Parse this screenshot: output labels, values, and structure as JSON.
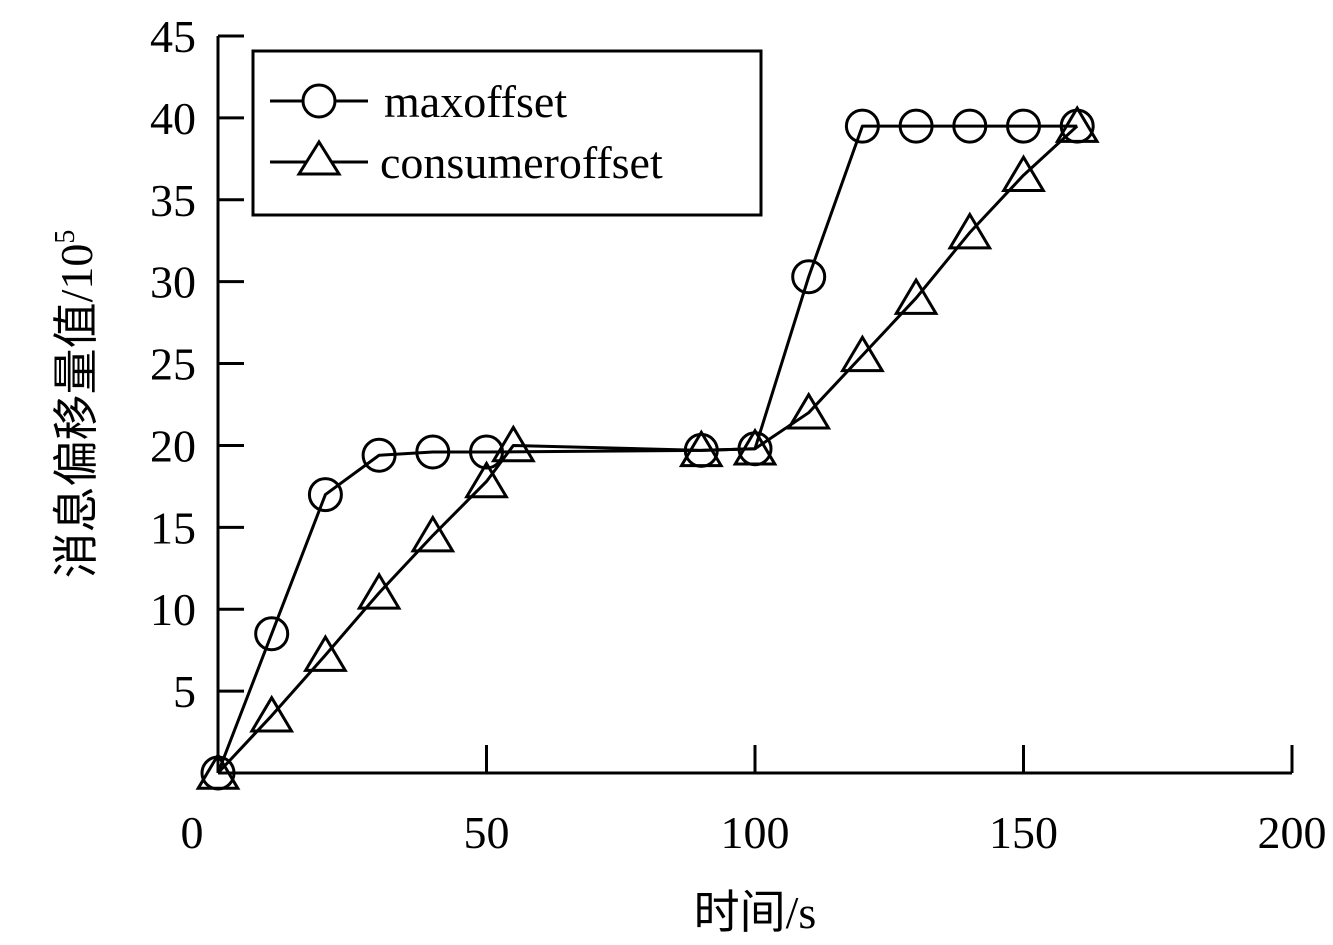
{
  "chart_data": {
    "type": "line",
    "xlabel": "时间/s",
    "ylabel": "消息偏移量值/10",
    "ylabel_superscript": "5",
    "xlim": [
      0,
      200
    ],
    "ylim": [
      0,
      45
    ],
    "xticks": [
      "0",
      "50",
      "100",
      "150",
      "200"
    ],
    "yticks": [
      "5",
      "10",
      "15",
      "20",
      "25",
      "30",
      "35",
      "40",
      "45"
    ],
    "grid": false,
    "legend_position": "top-left",
    "series": [
      {
        "name": "maxoffset",
        "marker": "circle",
        "x": [
          0,
          10,
          20,
          30,
          40,
          50,
          90,
          100,
          110,
          120,
          130,
          140,
          150,
          160
        ],
        "y": [
          0,
          8.5,
          17,
          19.4,
          19.6,
          19.6,
          19.7,
          19.8,
          30.3,
          39.5,
          39.5,
          39.5,
          39.5,
          39.5
        ]
      },
      {
        "name": "consumeroffset",
        "marker": "triangle",
        "x": [
          0,
          10,
          20,
          30,
          40,
          50,
          55,
          90,
          100,
          110,
          120,
          130,
          140,
          150,
          160
        ],
        "y": [
          0,
          3.5,
          7.2,
          11,
          14.5,
          17.8,
          20,
          19.7,
          19.8,
          22,
          25.5,
          29,
          33,
          36.5,
          39.5
        ]
      }
    ]
  },
  "colors": {
    "line": "#000000",
    "background": "#ffffff"
  }
}
